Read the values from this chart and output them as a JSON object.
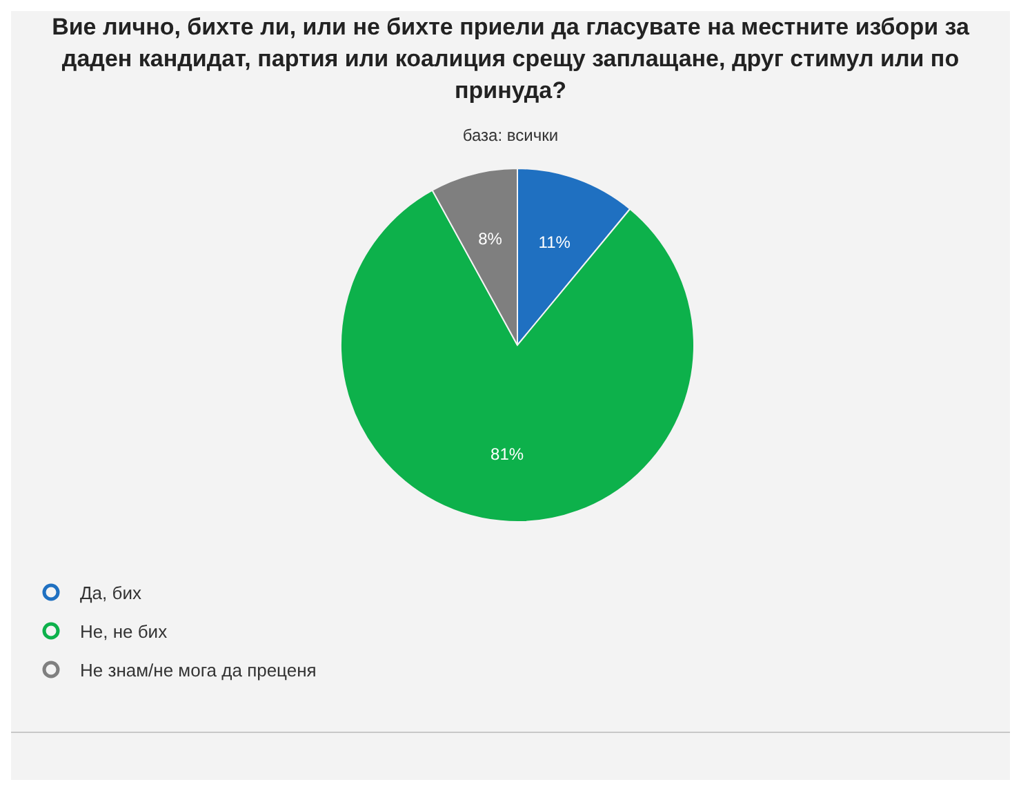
{
  "chart_data": {
    "type": "pie",
    "title": "Вие лично, бихте ли, или не бихте приели да гласувате на местните избори за даден кандидат, партия или коалиция срещу заплащане, друг стимул или по принуда?",
    "subtitle": "база: всички",
    "categories": [
      "Да, бих",
      "Не, не бих",
      "Не знам/не мога да преценя"
    ],
    "values": [
      11,
      81,
      8
    ],
    "colors": [
      "#1f70c1",
      "#0db14b",
      "#7f7f7f"
    ],
    "value_labels": [
      "11%",
      "81%",
      "8%"
    ],
    "legend": "bottom left"
  }
}
